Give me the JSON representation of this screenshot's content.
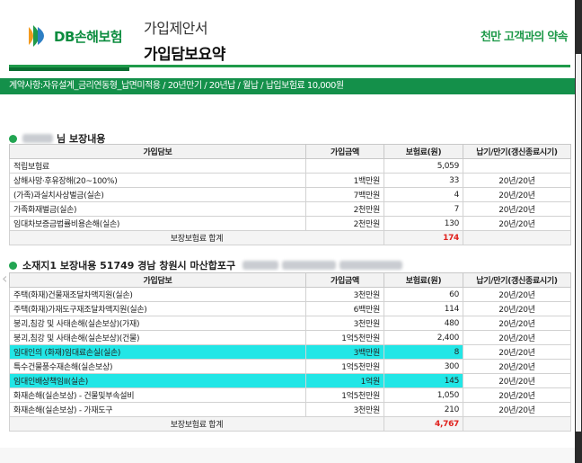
{
  "header": {
    "logo_text": "DB손해보험",
    "doc_subtitle": "가입제안서",
    "doc_title": "가입담보요약",
    "slogan": "천만 고객과의 약속"
  },
  "banner": "계약사항:자유설계_금리연동형_납면미적용 / 20년만기 / 20년납 / 월납 / 납입보험료 10,000원",
  "section1": {
    "title": "님 보장내용",
    "columns": [
      "가입담보",
      "가입금액",
      "보험료(원)",
      "납기/만기(갱신종료시기)"
    ],
    "rows": [
      {
        "name": "적립보험료",
        "amount": "",
        "premium": "5,059",
        "term": ""
      },
      {
        "name": "상해사망·후유장해(20~100%)",
        "amount": "1백만원",
        "premium": "33",
        "term": "20년/20년"
      },
      {
        "name": "(가족)과실치사상벌금(실손)",
        "amount": "7백만원",
        "premium": "4",
        "term": "20년/20년"
      },
      {
        "name": "가족화재벌금(실손)",
        "amount": "2천만원",
        "premium": "7",
        "term": "20년/20년"
      },
      {
        "name": "임대차보증금법률비용손해(실손)",
        "amount": "2천만원",
        "premium": "130",
        "term": "20년/20년"
      }
    ],
    "total_label": "보장보험료 합계",
    "total_value": "174"
  },
  "section2": {
    "title": "소재지1 보장내용 51749 경남 창원시 마산합포구",
    "columns": [
      "가입담보",
      "가입금액",
      "보험료(원)",
      "납기/만기(갱신종료시기)"
    ],
    "rows": [
      {
        "name": "주택(화재)건물재조달차액지원(실손)",
        "amount": "3천만원",
        "premium": "60",
        "term": "20년/20년",
        "highlight": false
      },
      {
        "name": "주택(화재)가재도구재조달차액지원(실손)",
        "amount": "6백만원",
        "premium": "114",
        "term": "20년/20년",
        "highlight": false
      },
      {
        "name": "붕괴,침강 및 사태손해(실손보상)(가재)",
        "amount": "3천만원",
        "premium": "480",
        "term": "20년/20년",
        "highlight": false
      },
      {
        "name": "붕괴,침강 및 사태손해(실손보상)(건물)",
        "amount": "1억5천만원",
        "premium": "2,400",
        "term": "20년/20년",
        "highlight": false
      },
      {
        "name": "임대인의 (화재)임대료손실(실손)",
        "amount": "3백만원",
        "premium": "8",
        "term": "20년/20년",
        "highlight": true
      },
      {
        "name": "특수건물풍수재손해(실손보상)",
        "amount": "1억5천만원",
        "premium": "300",
        "term": "20년/20년",
        "highlight": false
      },
      {
        "name": "임대인배상책임II(실손)",
        "amount": "1억원",
        "premium": "145",
        "term": "20년/20년",
        "highlight": true
      },
      {
        "name": "화재손해(실손보상) - 건물및부속설비",
        "amount": "1억5천만원",
        "premium": "1,050",
        "term": "20년/20년",
        "highlight": false
      },
      {
        "name": "화재손해(실손보상) - 가재도구",
        "amount": "3천만원",
        "premium": "210",
        "term": "20년/20년",
        "highlight": false
      }
    ],
    "total_label": "보장보험료 합계",
    "total_value": "4,767"
  },
  "colors": {
    "brand_green": "#1f9a4a",
    "highlight": "#22e6e6",
    "total_red": "#e0201c"
  }
}
